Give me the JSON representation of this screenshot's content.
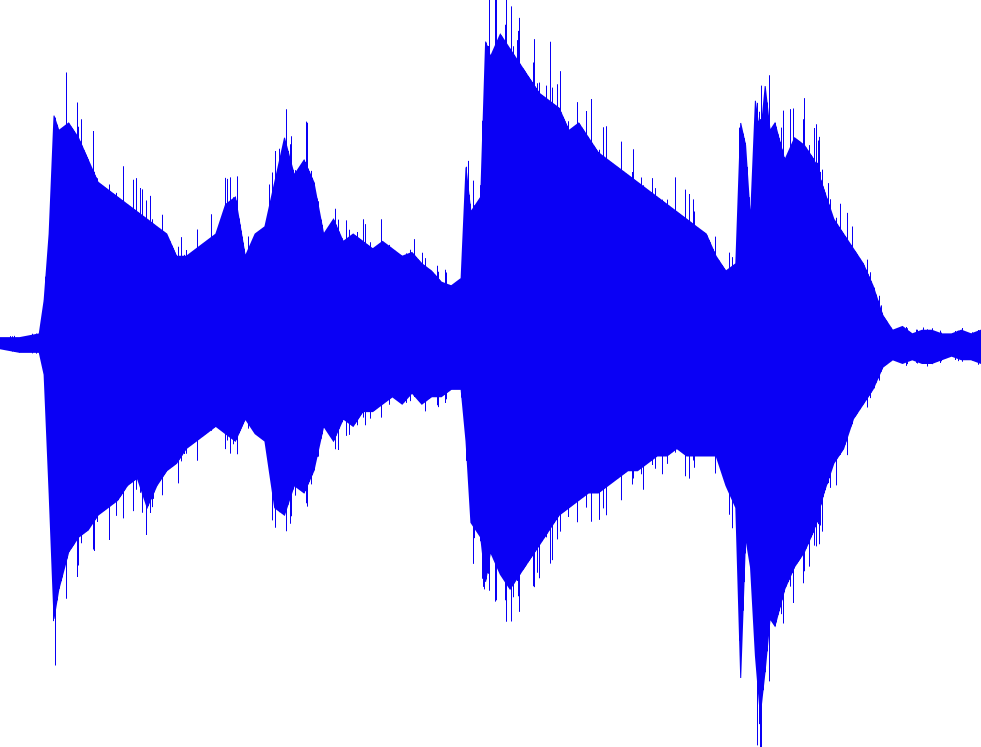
{
  "chart_data": {
    "type": "area",
    "title": "",
    "xlabel": "",
    "ylabel": "",
    "grid": false,
    "legend": "none",
    "baseline": 0,
    "ylim": [
      -1,
      1
    ],
    "series": [
      {
        "color": "#0a00f5",
        "x": [
          0,
          2,
          4,
          4.5,
          5,
          5.5,
          6,
          7,
          8,
          9,
          10,
          11,
          12,
          13,
          14,
          15,
          16,
          17,
          18,
          19,
          20,
          21,
          22,
          23,
          24,
          25,
          26,
          27,
          28,
          29,
          30,
          31,
          32,
          33,
          34,
          35,
          36,
          37,
          38,
          39,
          40,
          41,
          42,
          43,
          44,
          45,
          46,
          47,
          47.5,
          48,
          49,
          49.5,
          50,
          51,
          52,
          53,
          54,
          55,
          56,
          57,
          58,
          59,
          60,
          61,
          62,
          63,
          64,
          65,
          66,
          67,
          68,
          69,
          70,
          71,
          72,
          73,
          74,
          75,
          75.5,
          76,
          76.5,
          77,
          77.5,
          78,
          78.5,
          79,
          80,
          81,
          82,
          83,
          84,
          85,
          86,
          87,
          88,
          89,
          90,
          91,
          92,
          93,
          94,
          95,
          96,
          97,
          98,
          99,
          100
        ],
        "upper": [
          0.02,
          0.02,
          0.03,
          0.12,
          0.3,
          0.62,
          0.58,
          0.6,
          0.56,
          0.5,
          0.44,
          0.42,
          0.4,
          0.38,
          0.36,
          0.34,
          0.32,
          0.3,
          0.24,
          0.24,
          0.26,
          0.28,
          0.3,
          0.38,
          0.4,
          0.24,
          0.3,
          0.32,
          0.44,
          0.56,
          0.46,
          0.5,
          0.44,
          0.3,
          0.34,
          0.28,
          0.3,
          0.28,
          0.26,
          0.28,
          0.26,
          0.24,
          0.25,
          0.22,
          0.2,
          0.17,
          0.16,
          0.18,
          0.48,
          0.36,
          0.4,
          0.82,
          0.78,
          0.84,
          0.8,
          0.76,
          0.72,
          0.68,
          0.66,
          0.64,
          0.58,
          0.6,
          0.56,
          0.52,
          0.5,
          0.48,
          0.46,
          0.44,
          0.42,
          0.4,
          0.38,
          0.36,
          0.34,
          0.32,
          0.3,
          0.24,
          0.2,
          0.22,
          0.6,
          0.54,
          0.34,
          0.66,
          0.56,
          0.7,
          0.58,
          0.6,
          0.5,
          0.56,
          0.54,
          0.5,
          0.42,
          0.34,
          0.3,
          0.26,
          0.22,
          0.16,
          0.08,
          0.04,
          0.05,
          0.03,
          0.04,
          0.04,
          0.03,
          0.03,
          0.04,
          0.03,
          0.04
        ],
        "lower": [
          -0.01,
          -0.02,
          -0.02,
          -0.08,
          -0.4,
          -0.74,
          -0.66,
          -0.56,
          -0.52,
          -0.5,
          -0.46,
          -0.44,
          -0.42,
          -0.38,
          -0.36,
          -0.44,
          -0.38,
          -0.34,
          -0.32,
          -0.28,
          -0.26,
          -0.24,
          -0.22,
          -0.24,
          -0.26,
          -0.2,
          -0.24,
          -0.26,
          -0.44,
          -0.46,
          -0.38,
          -0.4,
          -0.34,
          -0.22,
          -0.26,
          -0.2,
          -0.22,
          -0.18,
          -0.18,
          -0.16,
          -0.14,
          -0.16,
          -0.13,
          -0.16,
          -0.14,
          -0.14,
          -0.12,
          -0.12,
          -0.26,
          -0.48,
          -0.52,
          -0.64,
          -0.56,
          -0.62,
          -0.66,
          -0.62,
          -0.58,
          -0.54,
          -0.5,
          -0.46,
          -0.44,
          -0.42,
          -0.4,
          -0.4,
          -0.38,
          -0.36,
          -0.34,
          -0.34,
          -0.32,
          -0.3,
          -0.3,
          -0.28,
          -0.3,
          -0.3,
          -0.3,
          -0.3,
          -0.38,
          -0.44,
          -0.9,
          -0.52,
          -0.6,
          -0.84,
          -1.0,
          -0.88,
          -0.74,
          -0.76,
          -0.66,
          -0.6,
          -0.56,
          -0.5,
          -0.4,
          -0.32,
          -0.28,
          -0.2,
          -0.16,
          -0.12,
          -0.06,
          -0.04,
          -0.05,
          -0.04,
          -0.05,
          -0.05,
          -0.04,
          -0.03,
          -0.04,
          -0.04,
          -0.05
        ]
      }
    ]
  }
}
